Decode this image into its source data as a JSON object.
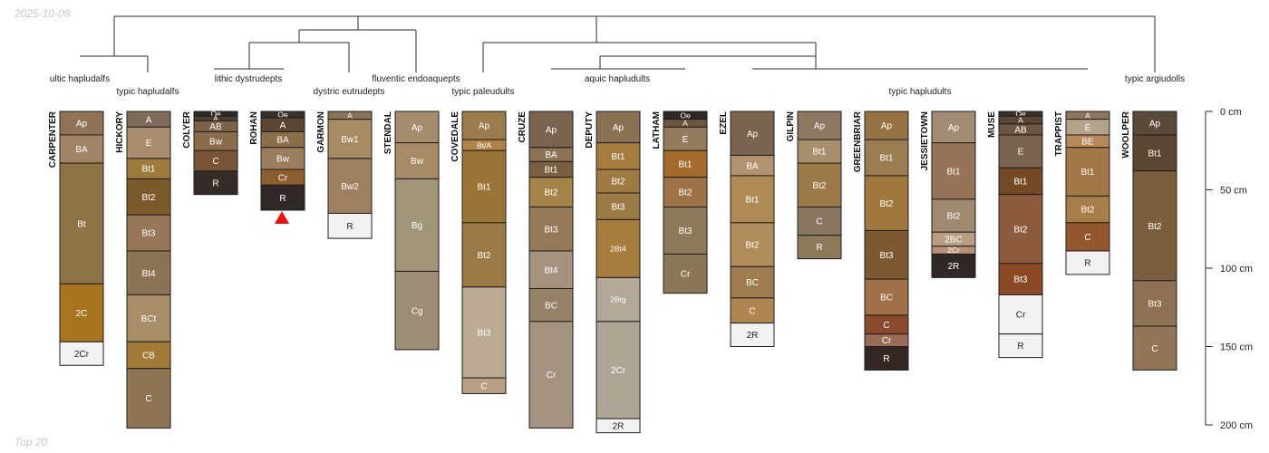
{
  "meta": {
    "date": "2025-10-08",
    "footer": "Top 20"
  },
  "depth_axis": {
    "unit": "cm",
    "min": 0,
    "max": 200,
    "ticks": [
      "0 cm",
      "50 cm",
      "100 cm",
      "150 cm",
      "200 cm"
    ]
  },
  "taxa": [
    {
      "id": "t0",
      "name": "ultic hapludalfs"
    },
    {
      "id": "t1",
      "name": "typic hapludalfs"
    },
    {
      "id": "t2",
      "name": "lithic dystrudepts"
    },
    {
      "id": "t3",
      "name": "dystric eutrudepts"
    },
    {
      "id": "t4",
      "name": "fluventic endoaquepts"
    },
    {
      "id": "t5",
      "name": "typic paleudults"
    },
    {
      "id": "t6",
      "name": "aquic hapludults"
    },
    {
      "id": "t7",
      "name": "typic hapludults"
    },
    {
      "id": "t8",
      "name": "typic argiudolls"
    }
  ],
  "profiles": [
    {
      "name": "CARPENTER",
      "horizons": [
        {
          "name": "Ap",
          "top": 0,
          "bottom": 15,
          "color": "#8f7458"
        },
        {
          "name": "BA",
          "top": 15,
          "bottom": 33,
          "color": "#a08465"
        },
        {
          "name": "Bt",
          "top": 33,
          "bottom": 110,
          "color": "#8e7446"
        },
        {
          "name": "2C",
          "top": 110,
          "bottom": 147,
          "color": "#a8741f"
        },
        {
          "name": "2Cr",
          "top": 147,
          "bottom": 162,
          "color": "#f2f2f2"
        }
      ]
    },
    {
      "name": "HICKORY",
      "horizons": [
        {
          "name": "A",
          "top": 0,
          "bottom": 10,
          "color": "#7d6a57"
        },
        {
          "name": "E",
          "top": 10,
          "bottom": 30,
          "color": "#a98d6c"
        },
        {
          "name": "Bt1",
          "top": 30,
          "bottom": 43,
          "color": "#9e7a3b"
        },
        {
          "name": "Bt2",
          "top": 43,
          "bottom": 66,
          "color": "#7c5a2a"
        },
        {
          "name": "Bt3",
          "top": 66,
          "bottom": 89,
          "color": "#967656"
        },
        {
          "name": "Bt4",
          "top": 89,
          "bottom": 117,
          "color": "#8d7355"
        },
        {
          "name": "BCt",
          "top": 117,
          "bottom": 147,
          "color": "#a78d68"
        },
        {
          "name": "CB",
          "top": 147,
          "bottom": 164,
          "color": "#a27a38"
        },
        {
          "name": "C",
          "top": 164,
          "bottom": 202,
          "color": "#8e7452"
        }
      ]
    },
    {
      "name": "COLYER",
      "horizons": [
        {
          "name": "Oe",
          "top": 0,
          "bottom": 3,
          "color": "#2e2a26"
        },
        {
          "name": "A",
          "top": 3,
          "bottom": 6,
          "color": "#4e3f30"
        },
        {
          "name": "AB",
          "top": 6,
          "bottom": 13,
          "color": "#7b6248"
        },
        {
          "name": "Bw",
          "top": 13,
          "bottom": 25,
          "color": "#8a6c4c"
        },
        {
          "name": "C",
          "top": 25,
          "bottom": 38,
          "color": "#7a5535"
        },
        {
          "name": "R",
          "top": 38,
          "bottom": 53,
          "color": "#352c28"
        }
      ]
    },
    {
      "name": "ROHAN",
      "horizons": [
        {
          "name": "Oe",
          "top": 0,
          "bottom": 4,
          "color": "#38302a"
        },
        {
          "name": "A",
          "top": 4,
          "bottom": 13,
          "color": "#5a4633"
        },
        {
          "name": "BA",
          "top": 13,
          "bottom": 23,
          "color": "#8c6e48"
        },
        {
          "name": "Bw",
          "top": 23,
          "bottom": 37,
          "color": "#9b7f5c"
        },
        {
          "name": "Cr",
          "top": 37,
          "bottom": 47,
          "color": "#8d5d2e"
        },
        {
          "name": "R",
          "top": 47,
          "bottom": 63,
          "color": "#2f2827"
        }
      ]
    },
    {
      "name": "GARMON",
      "horizons": [
        {
          "name": "A",
          "top": 0,
          "bottom": 5,
          "color": "#8a7157"
        },
        {
          "name": "Bw1",
          "top": 5,
          "bottom": 30,
          "color": "#a78b63"
        },
        {
          "name": "Bw2",
          "top": 30,
          "bottom": 65,
          "color": "#9e8060"
        },
        {
          "name": "R",
          "top": 65,
          "bottom": 81,
          "color": "#f2f2f2"
        }
      ]
    },
    {
      "name": "STENDAL",
      "horizons": [
        {
          "name": "Ap",
          "top": 0,
          "bottom": 20,
          "color": "#a68b6c"
        },
        {
          "name": "Bw",
          "top": 20,
          "bottom": 43,
          "color": "#a78a66"
        },
        {
          "name": "Bg",
          "top": 43,
          "bottom": 102,
          "color": "#a09479"
        },
        {
          "name": "Cg",
          "top": 102,
          "bottom": 152,
          "color": "#9c8d76"
        }
      ]
    },
    {
      "name": "COVEDALE",
      "horizons": [
        {
          "name": "Ap",
          "top": 0,
          "bottom": 18,
          "color": "#9c7b4d"
        },
        {
          "name": "Bt/A",
          "top": 18,
          "bottom": 25,
          "color": "#b0834b"
        },
        {
          "name": "Bt1",
          "top": 25,
          "bottom": 71,
          "color": "#9b7537"
        },
        {
          "name": "Bt2",
          "top": 71,
          "bottom": 112,
          "color": "#9c7a45"
        },
        {
          "name": "Bt3",
          "top": 112,
          "bottom": 170,
          "color": "#bbab92"
        },
        {
          "name": "C",
          "top": 170,
          "bottom": 180,
          "color": "#b9a084"
        }
      ]
    },
    {
      "name": "CRUZE",
      "horizons": [
        {
          "name": "Ap",
          "top": 0,
          "bottom": 23,
          "color": "#7a6450"
        },
        {
          "name": "BA",
          "top": 23,
          "bottom": 32,
          "color": "#8d7356"
        },
        {
          "name": "Bt1",
          "top": 32,
          "bottom": 42,
          "color": "#7a6040"
        },
        {
          "name": "Bt2",
          "top": 42,
          "bottom": 61,
          "color": "#a48349"
        },
        {
          "name": "Bt3",
          "top": 61,
          "bottom": 89,
          "color": "#957a58"
        },
        {
          "name": "Bt4",
          "top": 89,
          "bottom": 113,
          "color": "#a5927e"
        },
        {
          "name": "BC",
          "top": 113,
          "bottom": 134,
          "color": "#958068"
        },
        {
          "name": "Cr",
          "top": 134,
          "bottom": 202,
          "color": "#a39380"
        }
      ]
    },
    {
      "name": "DEPUTY",
      "horizons": [
        {
          "name": "Ap",
          "top": 0,
          "bottom": 20,
          "color": "#8a7153"
        },
        {
          "name": "Bt1",
          "top": 20,
          "bottom": 37,
          "color": "#a57c3e"
        },
        {
          "name": "Bt2",
          "top": 37,
          "bottom": 52,
          "color": "#a07a43"
        },
        {
          "name": "Bt3",
          "top": 52,
          "bottom": 69,
          "color": "#9d7b44"
        },
        {
          "name": "2Bt4",
          "top": 69,
          "bottom": 106,
          "color": "#a67c3c"
        },
        {
          "name": "2Btg",
          "top": 106,
          "bottom": 134,
          "color": "#b3a898"
        },
        {
          "name": "2Cr",
          "top": 134,
          "bottom": 196,
          "color": "#ada694"
        },
        {
          "name": "2R",
          "top": 196,
          "bottom": 205,
          "color": "#f2f2f2"
        }
      ]
    },
    {
      "name": "LATHAM",
      "horizons": [
        {
          "name": "Oe",
          "top": 0,
          "bottom": 5,
          "color": "#2e2725"
        },
        {
          "name": "A",
          "top": 5,
          "bottom": 10,
          "color": "#6e5540"
        },
        {
          "name": "E",
          "top": 10,
          "bottom": 25,
          "color": "#947b5e"
        },
        {
          "name": "Bt1",
          "top": 25,
          "bottom": 42,
          "color": "#a46a2b"
        },
        {
          "name": "Bt2",
          "top": 42,
          "bottom": 61,
          "color": "#9d7347"
        },
        {
          "name": "Bt3",
          "top": 61,
          "bottom": 91,
          "color": "#8e7a5a"
        },
        {
          "name": "Cr",
          "top": 91,
          "bottom": 116,
          "color": "#8b7755"
        }
      ]
    },
    {
      "name": "EZEL",
      "horizons": [
        {
          "name": "Ap",
          "top": 0,
          "bottom": 28,
          "color": "#7b6450"
        },
        {
          "name": "BA",
          "top": 28,
          "bottom": 41,
          "color": "#b0926e"
        },
        {
          "name": "Bt1",
          "top": 41,
          "bottom": 71,
          "color": "#b18b55"
        },
        {
          "name": "Bt2",
          "top": 71,
          "bottom": 99,
          "color": "#b08c5a"
        },
        {
          "name": "BC",
          "top": 99,
          "bottom": 119,
          "color": "#9f7b4f"
        },
        {
          "name": "C",
          "top": 119,
          "bottom": 135,
          "color": "#b08650"
        },
        {
          "name": "2R",
          "top": 135,
          "bottom": 150,
          "color": "#f2f2f2"
        }
      ]
    },
    {
      "name": "GILPIN",
      "horizons": [
        {
          "name": "Ap",
          "top": 0,
          "bottom": 18,
          "color": "#8c7863"
        },
        {
          "name": "Bt1",
          "top": 18,
          "bottom": 33,
          "color": "#a88f6c"
        },
        {
          "name": "Bt2",
          "top": 33,
          "bottom": 61,
          "color": "#9b7a48"
        },
        {
          "name": "C",
          "top": 61,
          "bottom": 79,
          "color": "#8a7762"
        },
        {
          "name": "R",
          "top": 79,
          "bottom": 94,
          "color": "#8d7a58"
        }
      ]
    },
    {
      "name": "GREENBRIAR",
      "horizons": [
        {
          "name": "Ap",
          "top": 0,
          "bottom": 18,
          "color": "#977344"
        },
        {
          "name": "Bt1",
          "top": 18,
          "bottom": 41,
          "color": "#9c7d52"
        },
        {
          "name": "Bt2",
          "top": 41,
          "bottom": 76,
          "color": "#a0783d"
        },
        {
          "name": "Bt3",
          "top": 76,
          "bottom": 107,
          "color": "#7e5830"
        },
        {
          "name": "BC",
          "top": 107,
          "bottom": 130,
          "color": "#a07049"
        },
        {
          "name": "C",
          "top": 130,
          "bottom": 142,
          "color": "#8a4a2c"
        },
        {
          "name": "Cr",
          "top": 142,
          "bottom": 150,
          "color": "#9a6c58"
        },
        {
          "name": "R",
          "top": 150,
          "bottom": 165,
          "color": "#342825"
        }
      ]
    },
    {
      "name": "JESSIETOWN",
      "horizons": [
        {
          "name": "Ap",
          "top": 0,
          "bottom": 20,
          "color": "#a28c73"
        },
        {
          "name": "Bt1",
          "top": 20,
          "bottom": 56,
          "color": "#977458"
        },
        {
          "name": "Bt2",
          "top": 56,
          "bottom": 77,
          "color": "#a08a6f"
        },
        {
          "name": "2BC",
          "top": 77,
          "bottom": 86,
          "color": "#b89e80"
        },
        {
          "name": "2Cr",
          "top": 86,
          "bottom": 91,
          "color": "#b89078"
        },
        {
          "name": "2R",
          "top": 91,
          "bottom": 106,
          "color": "#302825"
        }
      ]
    },
    {
      "name": "MUSE",
      "horizons": [
        {
          "name": "Oe",
          "top": 0,
          "bottom": 3,
          "color": "#3b312b"
        },
        {
          "name": "A",
          "top": 3,
          "bottom": 8,
          "color": "#5b4434"
        },
        {
          "name": "AB",
          "top": 8,
          "bottom": 15,
          "color": "#6e5644"
        },
        {
          "name": "E",
          "top": 15,
          "bottom": 36,
          "color": "#7a6450"
        },
        {
          "name": "Bt1",
          "top": 36,
          "bottom": 53,
          "color": "#744a26"
        },
        {
          "name": "Bt2",
          "top": 53,
          "bottom": 97,
          "color": "#8d5c3f"
        },
        {
          "name": "Bt3",
          "top": 97,
          "bottom": 117,
          "color": "#8b4a25"
        },
        {
          "name": "Cr",
          "top": 117,
          "bottom": 142,
          "color": "#f2f2f2"
        },
        {
          "name": "R",
          "top": 142,
          "bottom": 157,
          "color": "#f2f2f2"
        }
      ]
    },
    {
      "name": "TRAPPIST",
      "horizons": [
        {
          "name": "A",
          "top": 0,
          "bottom": 5,
          "color": "#8d7560"
        },
        {
          "name": "E",
          "top": 5,
          "bottom": 15,
          "color": "#b4a38b"
        },
        {
          "name": "BE",
          "top": 15,
          "bottom": 23,
          "color": "#b8895a"
        },
        {
          "name": "Bt1",
          "top": 23,
          "bottom": 54,
          "color": "#a27848"
        },
        {
          "name": "Bt2",
          "top": 54,
          "bottom": 71,
          "color": "#a87e48"
        },
        {
          "name": "C",
          "top": 71,
          "bottom": 89,
          "color": "#94562c"
        },
        {
          "name": "R",
          "top": 89,
          "bottom": 104,
          "color": "#f2f2f2"
        }
      ]
    },
    {
      "name": "WOOLPER",
      "horizons": [
        {
          "name": "Ap",
          "top": 0,
          "bottom": 15,
          "color": "#5a4a3a"
        },
        {
          "name": "Bt1",
          "top": 15,
          "bottom": 38,
          "color": "#5d4632"
        },
        {
          "name": "Bt2",
          "top": 38,
          "bottom": 108,
          "color": "#7b5e3e"
        },
        {
          "name": "Bt3",
          "top": 108,
          "bottom": 137,
          "color": "#8e7253"
        },
        {
          "name": "C",
          "top": 137,
          "bottom": 165,
          "color": "#917556"
        }
      ]
    }
  ]
}
